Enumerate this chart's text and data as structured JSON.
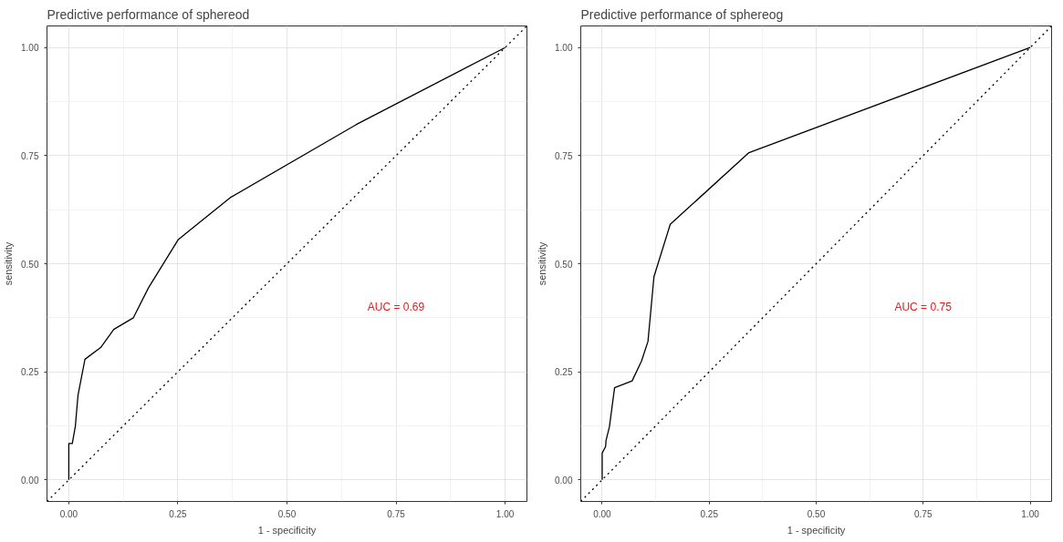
{
  "chart_data": [
    {
      "type": "line",
      "title": "Predictive performance of sphereod",
      "xlabel": "1 - specificity",
      "ylabel": "sensitivity",
      "xlim": [
        -0.05,
        1.05
      ],
      "ylim": [
        -0.05,
        1.05
      ],
      "xticks": [
        {
          "value": 0,
          "label": "0.00"
        },
        {
          "value": 0.25,
          "label": "0.25"
        },
        {
          "value": 0.5,
          "label": "0.50"
        },
        {
          "value": 0.75,
          "label": "0.75"
        },
        {
          "value": 1,
          "label": "1.00"
        }
      ],
      "yticks": [
        {
          "value": 0,
          "label": "0.00"
        },
        {
          "value": 0.25,
          "label": "0.25"
        },
        {
          "value": 0.5,
          "label": "0.50"
        },
        {
          "value": 0.75,
          "label": "0.75"
        },
        {
          "value": 1,
          "label": "1.00"
        }
      ],
      "grid": true,
      "marker": "none",
      "series": [
        {
          "color": "#000000",
          "line_style": "solid",
          "x": [
            0,
            0,
            0.008,
            0.015,
            0.021,
            0.037,
            0.073,
            0.103,
            0.148,
            0.183,
            0.251,
            0.37,
            0.659,
            1
          ],
          "values": [
            0,
            0.084,
            0.084,
            0.124,
            0.195,
            0.279,
            0.306,
            0.348,
            0.375,
            0.445,
            0.556,
            0.653,
            0.822,
            1
          ]
        },
        {
          "color": "#000000",
          "line_style": "dotted",
          "x": [
            -0.05,
            1.05
          ],
          "values": [
            -0.05,
            1.05
          ]
        }
      ],
      "annotations": [
        "AUC = 0.69"
      ]
    },
    {
      "type": "line",
      "title": "Predictive performance of sphereog",
      "xlabel": "1 - specificity",
      "ylabel": "sensitivity",
      "xlim": [
        -0.05,
        1.05
      ],
      "ylim": [
        -0.05,
        1.05
      ],
      "xticks": [
        {
          "value": 0,
          "label": "0.00"
        },
        {
          "value": 0.25,
          "label": "0.25"
        },
        {
          "value": 0.5,
          "label": "0.50"
        },
        {
          "value": 0.75,
          "label": "0.75"
        },
        {
          "value": 1,
          "label": "1.00"
        }
      ],
      "yticks": [
        {
          "value": 0,
          "label": "0.00"
        },
        {
          "value": 0.25,
          "label": "0.25"
        },
        {
          "value": 0.5,
          "label": "0.50"
        },
        {
          "value": 0.75,
          "label": "0.75"
        },
        {
          "value": 1,
          "label": "1.00"
        }
      ],
      "grid": true,
      "marker": "none",
      "series": [
        {
          "color": "#000000",
          "line_style": "solid",
          "x": [
            0,
            0,
            0.008,
            0.009,
            0.017,
            0.029,
            0.07,
            0.092,
            0.107,
            0.121,
            0.159,
            0.343,
            1
          ],
          "values": [
            0,
            0.062,
            0.077,
            0.091,
            0.123,
            0.213,
            0.229,
            0.275,
            0.32,
            0.47,
            0.591,
            0.757,
            1
          ]
        },
        {
          "color": "#000000",
          "line_style": "dotted",
          "x": [
            -0.05,
            1.05
          ],
          "values": [
            -0.05,
            1.05
          ]
        }
      ],
      "annotations": [
        "AUC = 0.75"
      ]
    }
  ]
}
